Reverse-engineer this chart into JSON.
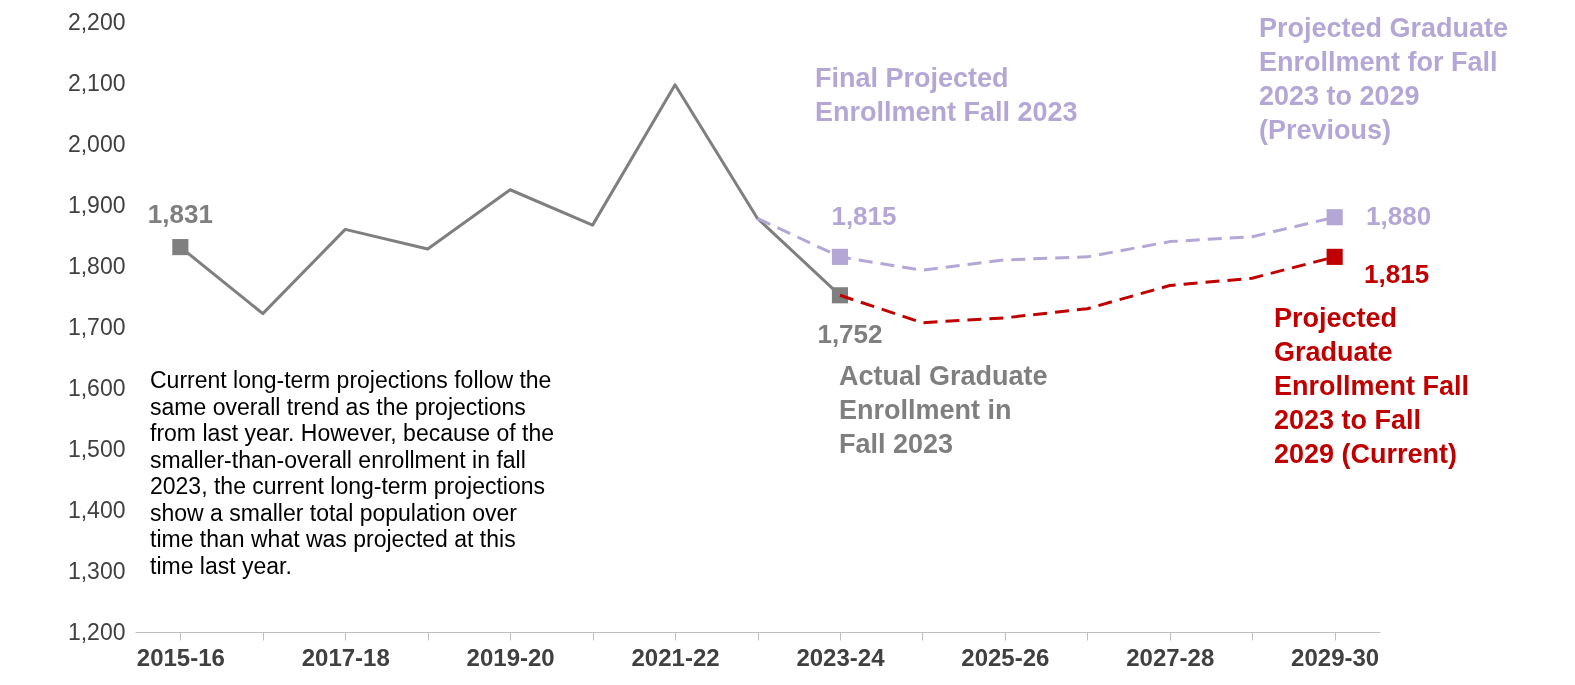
{
  "chart_data": {
    "type": "line",
    "categories": [
      "2015-16",
      null,
      "2017-18",
      null,
      "2019-20",
      null,
      "2021-22",
      null,
      "2023-24",
      null,
      "2025-26",
      null,
      "2027-28",
      null,
      "2029-30"
    ],
    "series": [
      {
        "color": "#7f7f7f",
        "line_style": "solid",
        "values": [
          1831,
          1722,
          1860,
          1828,
          1925,
          1867,
          2097,
          1878,
          1752,
          null,
          null,
          null,
          null,
          null,
          null
        ],
        "value_labels": [
          "1,831",
          null,
          null,
          null,
          null,
          null,
          null,
          null,
          "1,752",
          null,
          null,
          null,
          null,
          null,
          null
        ]
      },
      {
        "color": "#b4a7d6",
        "line_style": "dashed",
        "values": [
          null,
          null,
          null,
          null,
          null,
          null,
          null,
          1878,
          1815,
          1793,
          1810,
          1815,
          1840,
          1848,
          1880
        ],
        "value_labels": [
          null,
          null,
          null,
          null,
          null,
          null,
          null,
          null,
          "1,815",
          null,
          null,
          null,
          null,
          null,
          "1,880"
        ]
      },
      {
        "color": "#c00000",
        "line_style": "dashed",
        "values": [
          null,
          null,
          null,
          null,
          null,
          null,
          null,
          null,
          1752,
          1707,
          1715,
          1730,
          1768,
          1780,
          1815
        ],
        "value_labels": [
          null,
          null,
          null,
          null,
          null,
          null,
          null,
          null,
          null,
          null,
          null,
          null,
          null,
          null,
          "1,815"
        ]
      }
    ],
    "ylim": [
      1200,
      2200
    ],
    "yticks": [
      {
        "value": 1200,
        "label": "1,200"
      },
      {
        "value": 1300,
        "label": "1,300"
      },
      {
        "value": 1400,
        "label": "1,400"
      },
      {
        "value": 1500,
        "label": "1,500"
      },
      {
        "value": 1600,
        "label": "1,600"
      },
      {
        "value": 1700,
        "label": "1,700"
      },
      {
        "value": 1800,
        "label": "1,800"
      },
      {
        "value": 1900,
        "label": "1,900"
      },
      {
        "value": 2000,
        "label": "2,000"
      },
      {
        "value": 2100,
        "label": "2,100"
      },
      {
        "value": 2200,
        "label": "2,200"
      }
    ],
    "grid": false,
    "annotations": [
      "Final Projected\nEnrollment Fall 2023",
      "Projected Graduate\nEnrollment for Fall\n2023 to 2029\n(Previous)",
      "Actual Graduate\nEnrollment in\nFall 2023",
      "Projected\nGraduate\nEnrollment Fall\n2023 to Fall\n2029 (Current)",
      "Current long-term projections follow the\nsame overall trend as the projections\nfrom last year. However, because of the\nsmaller-than-overall enrollment in fall\n2023, the current long-term projections\nshow a smaller total population over\ntime than what was projected at this\ntime last year."
    ]
  }
}
